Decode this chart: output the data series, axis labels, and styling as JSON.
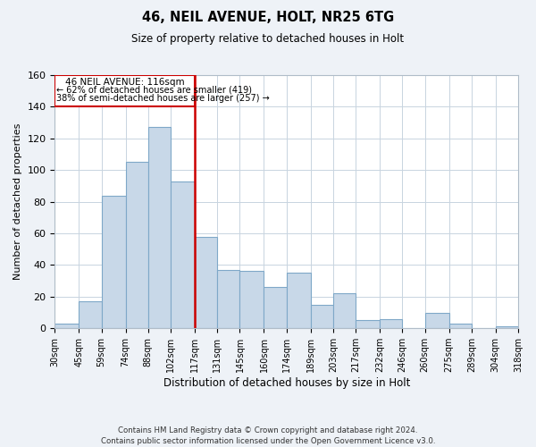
{
  "title1": "46, NEIL AVENUE, HOLT, NR25 6TG",
  "title2": "Size of property relative to detached houses in Holt",
  "xlabel": "Distribution of detached houses by size in Holt",
  "ylabel": "Number of detached properties",
  "bins": [
    30,
    45,
    59,
    74,
    88,
    102,
    117,
    131,
    145,
    160,
    174,
    189,
    203,
    217,
    232,
    246,
    260,
    275,
    289,
    304,
    318
  ],
  "counts": [
    3,
    17,
    84,
    105,
    127,
    93,
    58,
    37,
    36,
    26,
    35,
    15,
    22,
    5,
    6,
    0,
    10,
    3,
    0,
    1
  ],
  "tick_labels": [
    "30sqm",
    "45sqm",
    "59sqm",
    "74sqm",
    "88sqm",
    "102sqm",
    "117sqm",
    "131sqm",
    "145sqm",
    "160sqm",
    "174sqm",
    "189sqm",
    "203sqm",
    "217sqm",
    "232sqm",
    "246sqm",
    "260sqm",
    "275sqm",
    "289sqm",
    "304sqm",
    "318sqm"
  ],
  "bar_color": "#c8d8e8",
  "bar_edge_color": "#7fa8c8",
  "vline_x": 117,
  "vline_color": "#cc0000",
  "annotation_line1": "46 NEIL AVENUE: 116sqm",
  "annotation_line2": "← 62% of detached houses are smaller (419)",
  "annotation_line3": "38% of semi-detached houses are larger (257) →",
  "box_edge_color": "#cc0000",
  "ylim": [
    0,
    160
  ],
  "yticks": [
    0,
    20,
    40,
    60,
    80,
    100,
    120,
    140,
    160
  ],
  "footer1": "Contains HM Land Registry data © Crown copyright and database right 2024.",
  "footer2": "Contains public sector information licensed under the Open Government Licence v3.0.",
  "bg_color": "#eef2f7",
  "plot_bg_color": "#ffffff"
}
